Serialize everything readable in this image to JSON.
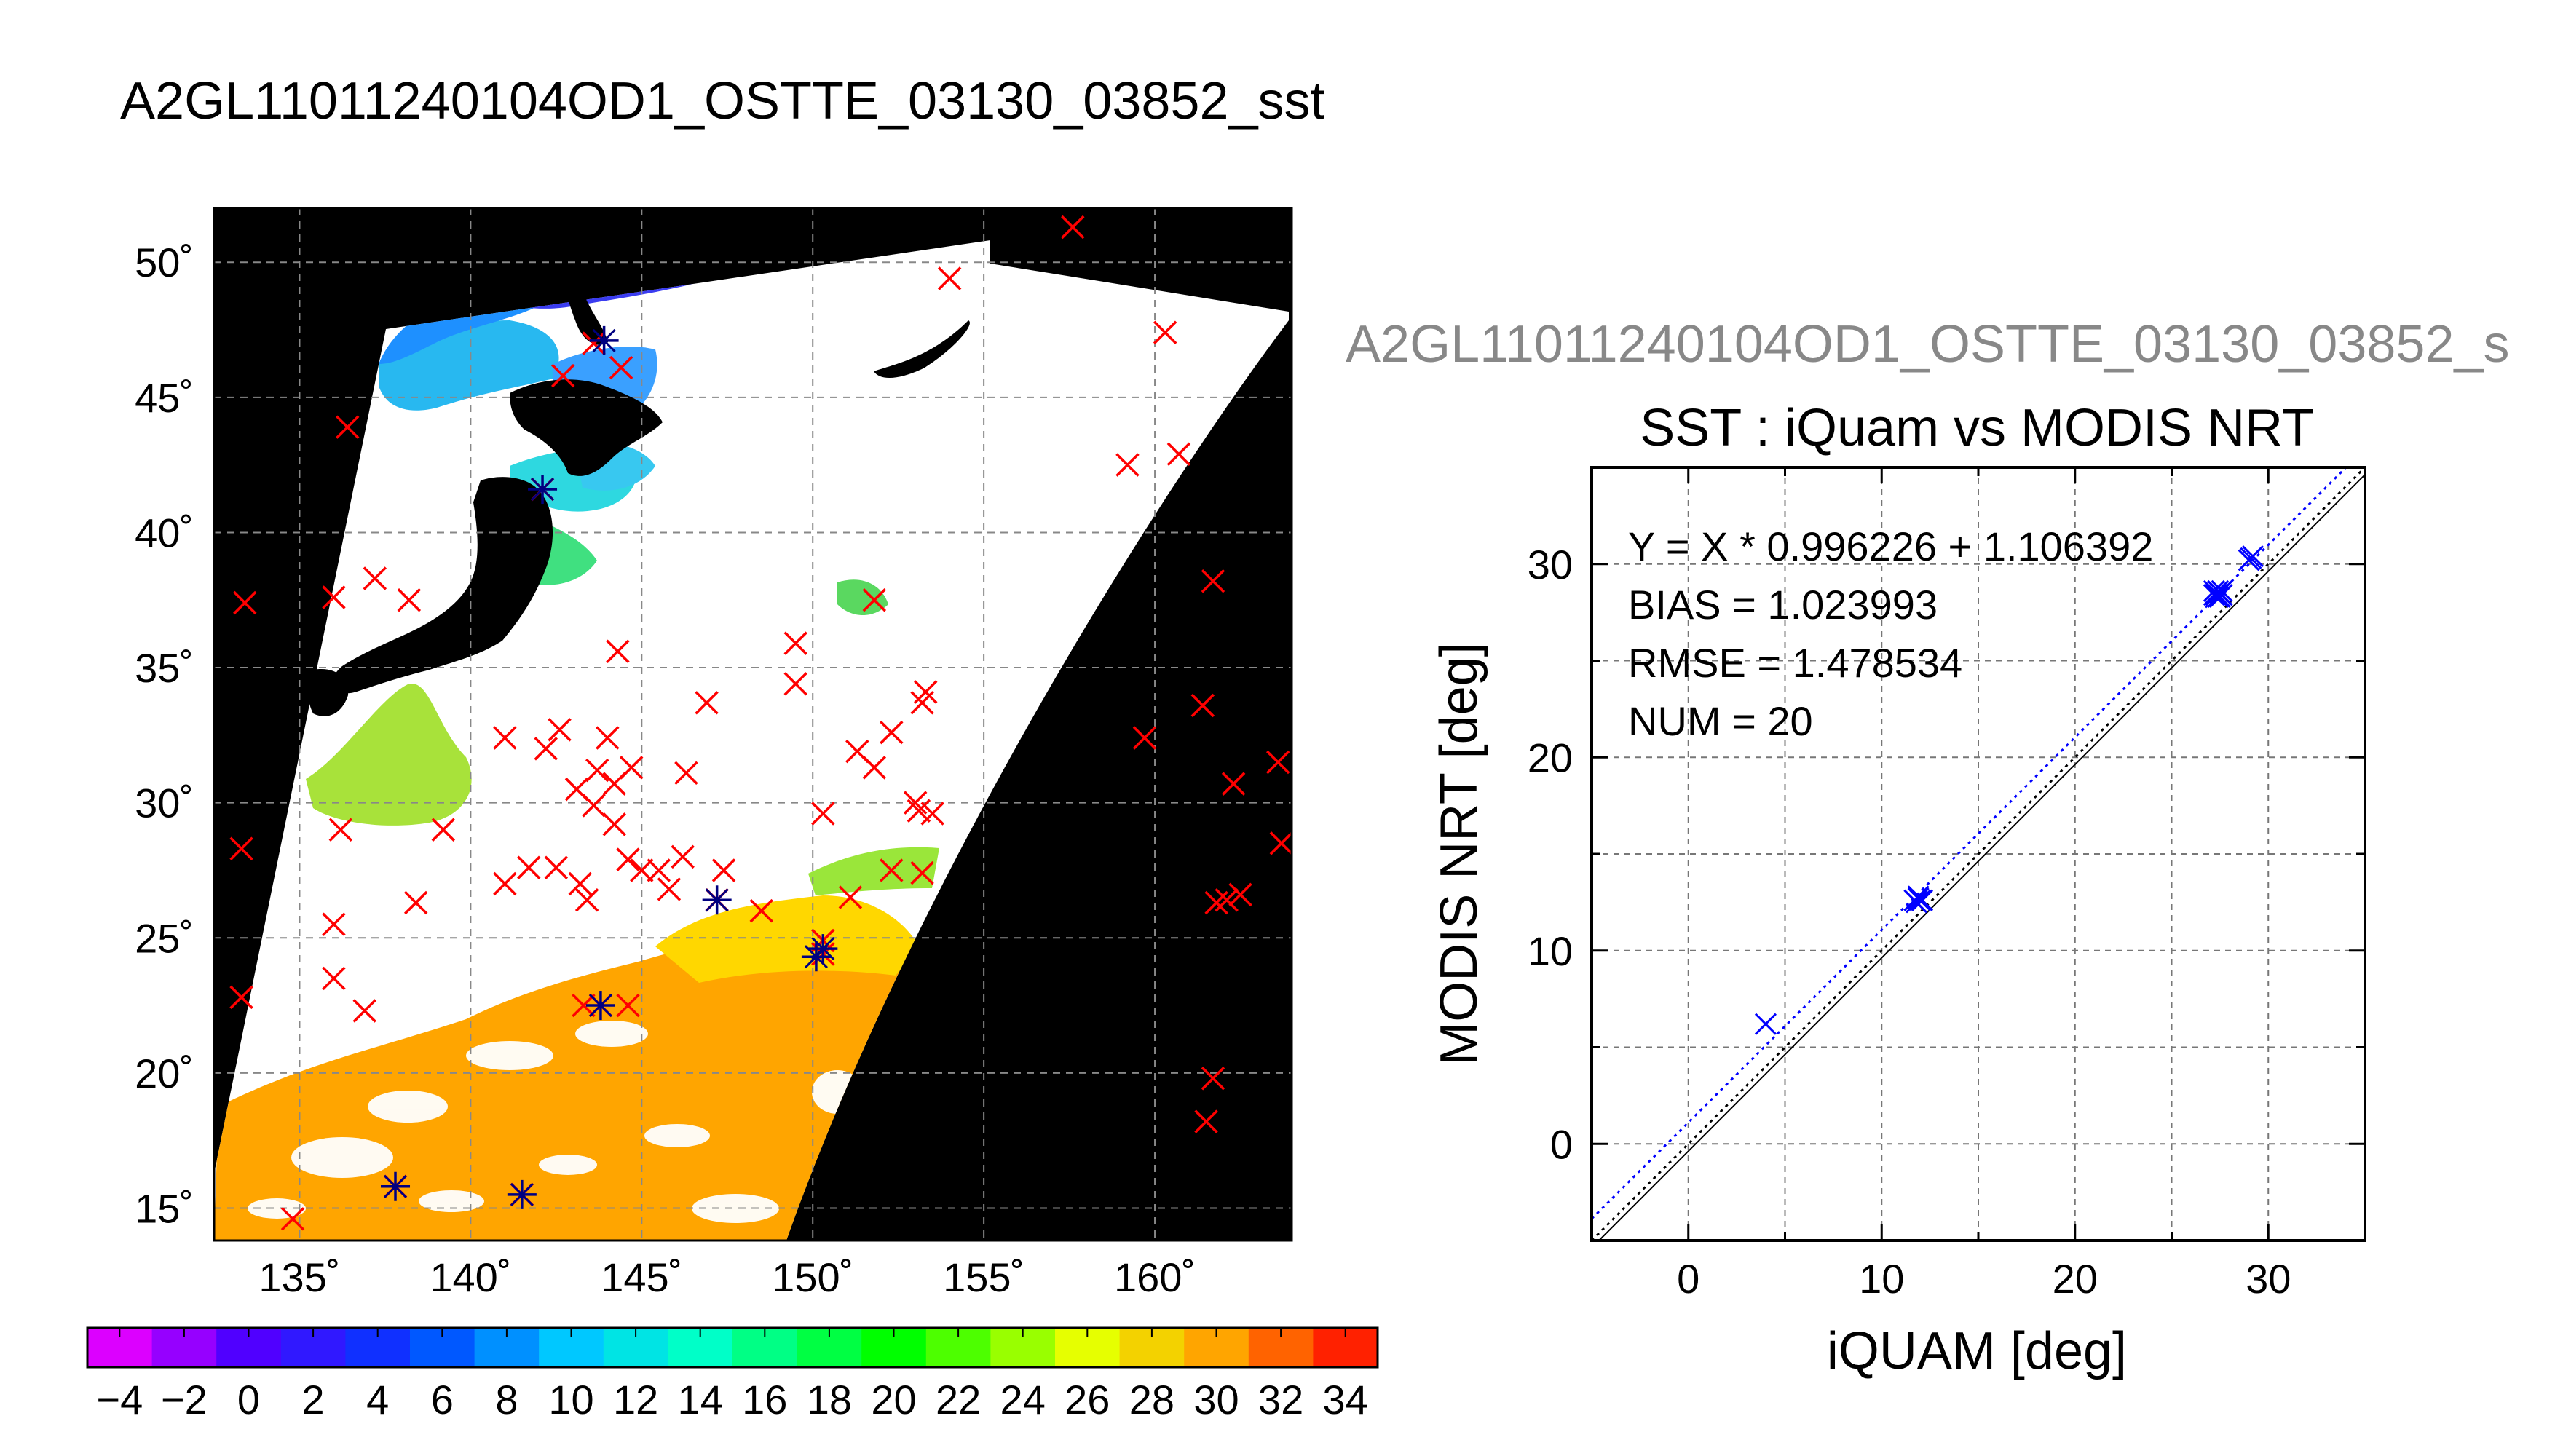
{
  "main_title": "A2GL11011240104OD1_OSTTE_03130_03852_sst",
  "subtitle": "A2GL11011240104OD1_OSTTE_03130_03852_s",
  "chart_data": [
    {
      "type": "map",
      "title": "",
      "xlabel": "",
      "ylabel": "",
      "lon_range": [
        132.5,
        164
      ],
      "lat_range": [
        13.8,
        52
      ],
      "lon_tick_labels": [
        "135˚",
        "140˚",
        "145˚",
        "150˚",
        "155˚",
        "160˚"
      ],
      "lon_ticks": [
        135,
        140,
        145,
        150,
        155,
        160
      ],
      "lat_tick_labels": [
        "50˚",
        "45˚",
        "40˚",
        "35˚",
        "30˚",
        "25˚",
        "20˚",
        "15˚"
      ],
      "lat_ticks": [
        50,
        45,
        40,
        35,
        30,
        25,
        20,
        15
      ],
      "grid": true,
      "colorbar": {
        "min": -5,
        "max": 35,
        "tick_labels": [
          "−4",
          "−2",
          "0",
          "2",
          "4",
          "6",
          "8",
          "10",
          "12",
          "14",
          "16",
          "18",
          "20",
          "22",
          "24",
          "26",
          "28",
          "30",
          "32",
          "34"
        ],
        "ticks": [
          -4,
          -2,
          0,
          2,
          4,
          6,
          8,
          10,
          12,
          14,
          16,
          18,
          20,
          22,
          24,
          26,
          28,
          30,
          32,
          34
        ]
      },
      "colors": {
        "land": "#000000",
        "cloud": "#ffffff",
        "marker_red": "#ff0000",
        "marker_match": "#000080"
      },
      "red_markers": [
        [
          134.8,
          14.6
        ],
        [
          137.8,
          15.8
        ],
        [
          141.5,
          15.5
        ],
        [
          143.3,
          22.5
        ],
        [
          143.8,
          22.5
        ],
        [
          144.6,
          22.5
        ],
        [
          136,
          23.5
        ],
        [
          136.9,
          22.3
        ],
        [
          133.3,
          22.8
        ],
        [
          136,
          25.5
        ],
        [
          138.4,
          26.3
        ],
        [
          141,
          27
        ],
        [
          141.7,
          27.6
        ],
        [
          142.5,
          27.6
        ],
        [
          143.2,
          27
        ],
        [
          143.4,
          26.4
        ],
        [
          144.6,
          27.9
        ],
        [
          145,
          27.5
        ],
        [
          145.5,
          27.5
        ],
        [
          145.8,
          26.8
        ],
        [
          146.2,
          28
        ],
        [
          147.2,
          26.4
        ],
        [
          147.4,
          27.5
        ],
        [
          148.5,
          26
        ],
        [
          150.3,
          24.4
        ],
        [
          150.3,
          24.9
        ],
        [
          136.2,
          29
        ],
        [
          139.2,
          29
        ],
        [
          141,
          32.4
        ],
        [
          142.2,
          32
        ],
        [
          142.6,
          32.7
        ],
        [
          143.1,
          30.5
        ],
        [
          143.6,
          29.9
        ],
        [
          143.7,
          31.2
        ],
        [
          144,
          32.4
        ],
        [
          144.2,
          30.7
        ],
        [
          144.7,
          31.3
        ],
        [
          144.2,
          29.2
        ],
        [
          146.3,
          31.1
        ],
        [
          146.9,
          33.7
        ],
        [
          150.3,
          29.6
        ],
        [
          151.3,
          31.9
        ],
        [
          151.8,
          31.3
        ],
        [
          152.3,
          32.6
        ],
        [
          151.1,
          26.5
        ],
        [
          152.3,
          27.5
        ],
        [
          153,
          30
        ],
        [
          153.1,
          29.7
        ],
        [
          153.2,
          27.4
        ],
        [
          153.5,
          29.6
        ],
        [
          153.3,
          34.1
        ],
        [
          153.2,
          33.7
        ],
        [
          149.5,
          35.9
        ],
        [
          149.5,
          34.4
        ],
        [
          151.8,
          37.5
        ],
        [
          144.3,
          35.6
        ],
        [
          136,
          37.6
        ],
        [
          137.2,
          38.3
        ],
        [
          138.2,
          37.5
        ],
        [
          142.1,
          41.6
        ],
        [
          143.6,
          47
        ],
        [
          142.7,
          45.8
        ],
        [
          144.4,
          46.1
        ],
        [
          136.4,
          43.9
        ],
        [
          133.4,
          37.4
        ],
        [
          133.3,
          28.3
        ],
        [
          159.2,
          42.5
        ],
        [
          160.7,
          42.9
        ],
        [
          161.7,
          38.2
        ],
        [
          161.4,
          33.6
        ],
        [
          159.7,
          32.4
        ],
        [
          162.3,
          30.7
        ],
        [
          163.6,
          31.5
        ],
        [
          163.7,
          28.5
        ],
        [
          161.8,
          26.3
        ],
        [
          162.1,
          26.4
        ],
        [
          162.5,
          26.6
        ],
        [
          161.7,
          19.8
        ],
        [
          161.5,
          18.2
        ],
        [
          160.3,
          47.4
        ],
        [
          157.6,
          51.3
        ],
        [
          154,
          49.4
        ]
      ],
      "match_markers": [
        [
          137.8,
          15.8
        ],
        [
          141.5,
          15.5
        ],
        [
          143.8,
          22.5
        ],
        [
          147.2,
          26.4
        ],
        [
          150.3,
          24.6
        ],
        [
          150.1,
          24.3
        ],
        [
          142.1,
          41.6
        ],
        [
          143.9,
          47.1
        ]
      ]
    },
    {
      "type": "scatter",
      "title": "SST : iQuam vs MODIS NRT",
      "xlabel": "iQUAM [deg]",
      "ylabel": "MODIS NRT [deg]",
      "xlim": [
        -5,
        35
      ],
      "ylim": [
        -5,
        35
      ],
      "x_ticks": [
        0,
        10,
        20,
        30
      ],
      "y_ticks": [
        0,
        10,
        20,
        30
      ],
      "x_tick_labels": [
        "0",
        "10",
        "20",
        "30"
      ],
      "y_tick_labels": [
        "0",
        "10",
        "20",
        "30"
      ],
      "grid": true,
      "annotations": [
        "Y = X * 0.996226 + 1.106392",
        "BIAS = 1.023993",
        "RMSE = 1.478534",
        "NUM = 20"
      ],
      "fit": {
        "slope": 0.996226,
        "intercept": 1.106392,
        "color": "#0000ff"
      },
      "identity_line_color": "#000000",
      "point_color": "#0000ff",
      "points": [
        [
          4.0,
          6.2
        ],
        [
          11.7,
          12.6
        ],
        [
          11.9,
          12.7
        ],
        [
          12.0,
          12.6
        ],
        [
          11.8,
          12.5
        ],
        [
          11.9,
          12.8
        ],
        [
          12.1,
          12.6
        ],
        [
          27.2,
          28.4
        ],
        [
          27.4,
          28.6
        ],
        [
          27.5,
          28.3
        ],
        [
          27.3,
          28.5
        ],
        [
          27.6,
          28.4
        ],
        [
          27.4,
          28.3
        ],
        [
          27.2,
          28.6
        ],
        [
          27.5,
          28.5
        ],
        [
          27.3,
          28.4
        ],
        [
          27.6,
          28.6
        ],
        [
          29.1,
          30.3
        ],
        [
          29.2,
          30.4
        ],
        [
          29.0,
          30.2
        ]
      ]
    }
  ]
}
